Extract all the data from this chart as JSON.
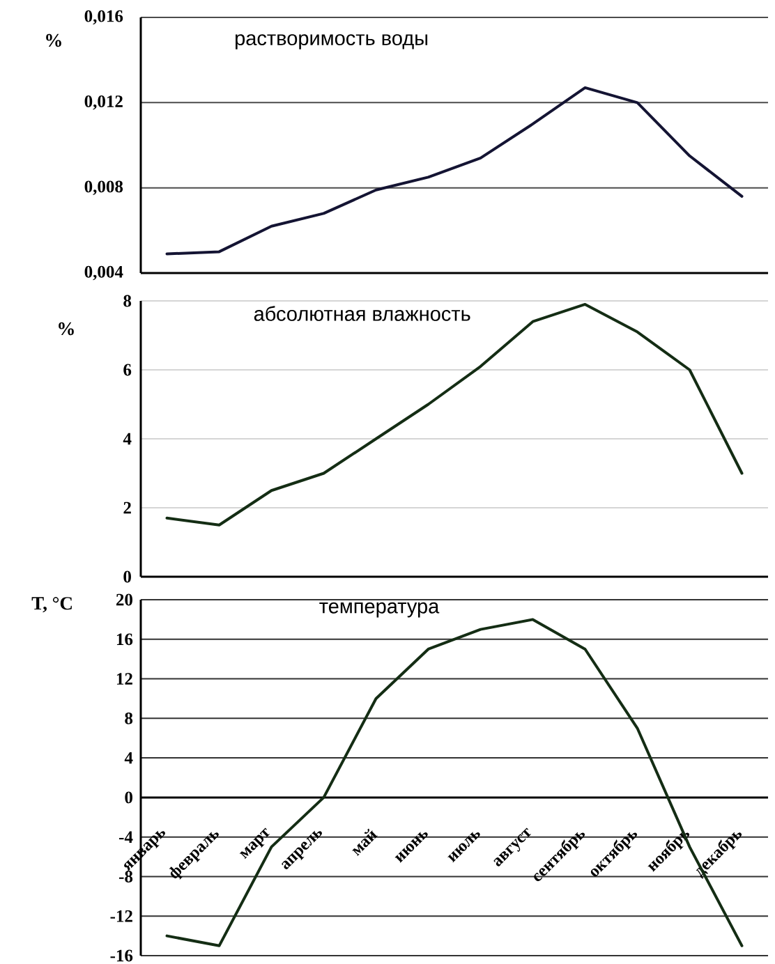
{
  "chart_data": [
    {
      "type": "line",
      "title": "растворимость воды",
      "ylabel": "%",
      "categories": [
        null,
        null,
        null,
        null,
        null,
        null,
        null,
        null,
        null,
        null,
        null,
        null
      ],
      "series": [
        {
          "color": "#141433",
          "values": [
            0.0049,
            0.005,
            0.0062,
            0.0068,
            0.0079,
            0.0085,
            0.0094,
            0.011,
            0.0127,
            0.012,
            0.0095,
            0.0076
          ]
        }
      ],
      "ylim": [
        0.004,
        0.016
      ],
      "yticks": [
        {
          "value": 0.004,
          "label": "0,004"
        },
        {
          "value": 0.008,
          "label": "0,008"
        },
        {
          "value": 0.012,
          "label": "0,012"
        },
        {
          "value": 0.016,
          "label": "0,016"
        }
      ],
      "grid": "y",
      "tick_labels": "y"
    },
    {
      "type": "line",
      "title": "абсолютная влажность",
      "ylabel": "%",
      "categories": [
        null,
        null,
        null,
        null,
        null,
        null,
        null,
        null,
        null,
        null,
        null,
        null
      ],
      "series": [
        {
          "color": "#142d14",
          "values": [
            1.7,
            1.5,
            2.5,
            3.0,
            4.0,
            5.0,
            6.1,
            7.4,
            7.9,
            7.1,
            6.0,
            3.0
          ]
        }
      ],
      "ylim": [
        0,
        8
      ],
      "yticks": [
        0,
        2,
        4,
        6,
        8
      ],
      "grid": "y",
      "tick_labels": "y"
    },
    {
      "type": "line",
      "title": "температура",
      "ylabel": "T, °C",
      "categories": [
        "январь",
        "февраль",
        "март",
        "апрель",
        "май",
        "июнь",
        "июль",
        "август",
        "сентябрь",
        "октябрь",
        "ноябрь",
        "декабрь"
      ],
      "series": [
        {
          "color": "#142d14",
          "values": [
            -14,
            -15,
            -5,
            0,
            10,
            15,
            17,
            18,
            15,
            7,
            -5,
            -15
          ]
        }
      ],
      "ylim": [
        -16,
        20
      ],
      "yticks": [
        -16,
        -12,
        -8,
        -4,
        0,
        4,
        8,
        12,
        16,
        20
      ],
      "grid": "y"
    }
  ]
}
